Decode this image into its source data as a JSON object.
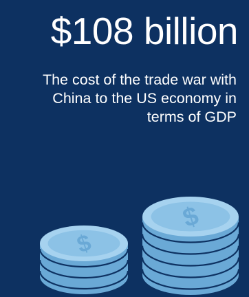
{
  "headline": "$108 billion",
  "subtitle": "The cost of the trade war with China to the US economy in terms of GDP",
  "illustration": {
    "icon": "coin-stacks-icon",
    "stacks": [
      {
        "name": "small",
        "coins": 3
      },
      {
        "name": "large",
        "coins": 5
      }
    ]
  },
  "colors": {
    "background": "#0d3161",
    "text": "#ffffff",
    "coin_face": "#8cc2e6",
    "coin_edge": "#6aa9d6",
    "coin_rim": "#a6d2ef",
    "coin_line": "#0d3161"
  }
}
